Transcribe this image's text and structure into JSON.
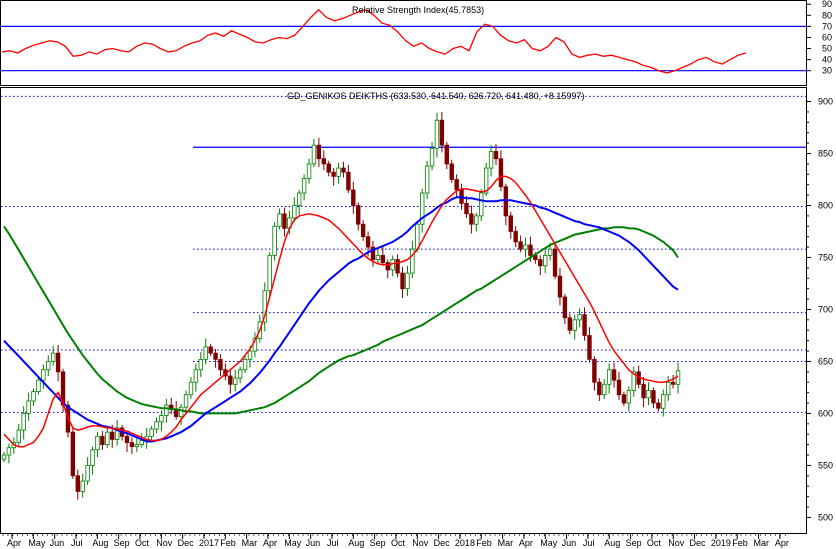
{
  "chart_data": [
    {
      "type": "line",
      "title": "Relative Strength Index(45.7853)",
      "y_ticks": [
        90,
        80,
        70,
        60,
        50,
        40,
        30
      ],
      "ylim": [
        18,
        92
      ],
      "reference_lines": [
        70,
        30
      ],
      "series": [
        {
          "color": "#ff0000",
          "values": [
            47,
            48,
            46,
            50,
            53,
            55,
            57,
            56,
            52,
            43,
            44,
            47,
            45,
            49,
            50,
            48,
            47,
            52,
            55,
            54,
            50,
            47,
            48,
            52,
            55,
            57,
            62,
            64,
            61,
            66,
            63,
            60,
            56,
            55,
            58,
            60,
            59,
            62,
            70,
            78,
            85,
            78,
            75,
            77,
            80,
            83,
            85,
            80,
            73,
            71,
            65,
            57,
            52,
            55,
            50,
            47,
            45,
            50,
            52,
            48,
            65,
            72,
            70,
            62,
            57,
            55,
            58,
            50,
            48,
            52,
            60,
            56,
            45,
            42,
            44,
            45,
            43,
            44,
            42,
            40,
            38,
            35,
            33,
            30,
            28,
            30,
            33,
            36,
            40,
            42,
            38,
            36,
            40,
            44,
            46
          ]
        }
      ]
    },
    {
      "type": "candlestick",
      "title": "GD_GENIKOS DEIKTHS (633.530, 641.540, 626.720, 641.480, +8.15997)",
      "y_ticks": [
        900,
        850,
        800,
        750,
        700,
        650,
        600,
        550,
        500
      ],
      "ylim": [
        485,
        913
      ],
      "x_ticks": [
        "Apr",
        "May",
        "Jun",
        "Jul",
        "Aug",
        "Sep",
        "Oct",
        "Nov",
        "Dec",
        "2017",
        "Feb",
        "Mar",
        "Apr",
        "May",
        "Jun",
        "Jul",
        "Aug",
        "Sep",
        "Oct",
        "Nov",
        "Dec",
        "2018",
        "Feb",
        "Mar",
        "Apr",
        "May",
        "Jun",
        "Jul",
        "Aug",
        "Sep",
        "Oct",
        "Nov",
        "Dec",
        "2019",
        "Feb",
        "Mar",
        "Apr"
      ],
      "x_tick_months": [
        0,
        1,
        2,
        3,
        4,
        5,
        6,
        7,
        8,
        9,
        10,
        11,
        12,
        13,
        14,
        15,
        16,
        17,
        18,
        19,
        20,
        21,
        22,
        23,
        24,
        25,
        26,
        27,
        28,
        29,
        30,
        31,
        32,
        33,
        34,
        35,
        36
      ],
      "first_month_x": 12,
      "month_spacing": 21.33,
      "bar_spacing": 4.92,
      "solid_lines": [
        856
      ],
      "dotted_lines": [
        905,
        799,
        758,
        697,
        661,
        650,
        601
      ],
      "close": [
        560,
        567,
        572,
        584,
        600,
        612,
        621,
        632,
        642,
        650,
        658,
        640,
        608,
        582,
        540,
        525,
        535,
        550,
        565,
        578,
        570,
        582,
        575,
        586,
        578,
        572,
        568,
        570,
        574,
        578,
        585,
        592,
        598,
        608,
        604,
        597,
        606,
        618,
        630,
        642,
        652,
        664,
        658,
        652,
        642,
        636,
        628,
        634,
        642,
        652,
        660,
        672,
        688,
        718,
        752,
        780,
        792,
        778,
        788,
        800,
        812,
        826,
        840,
        858,
        845,
        840,
        832,
        828,
        836,
        832,
        815,
        800,
        782,
        770,
        760,
        748,
        752,
        745,
        738,
        748,
        735,
        720,
        735,
        758,
        782,
        812,
        838,
        855,
        882,
        858,
        840,
        825,
        815,
        802,
        792,
        782,
        790,
        812,
        836,
        852,
        845,
        818,
        790,
        775,
        765,
        758,
        762,
        752,
        748,
        742,
        752,
        758,
        732,
        712,
        692,
        680,
        690,
        695,
        675,
        652,
        630,
        618,
        628,
        642,
        632,
        618,
        610,
        622,
        640,
        628,
        615,
        622,
        610,
        605,
        618,
        630,
        628,
        641
      ],
      "ma_red": [
        580,
        575,
        570,
        568,
        568,
        570,
        572,
        578,
        586,
        600,
        614,
        620,
        610,
        596,
        586,
        584,
        585,
        587,
        588,
        588,
        587,
        586,
        586,
        585,
        584,
        583,
        581,
        579,
        577,
        575,
        574,
        574,
        575,
        578,
        582,
        587,
        594,
        600,
        606,
        612,
        618,
        622,
        626,
        630,
        634,
        638,
        642,
        646,
        650,
        656,
        662,
        670,
        680,
        694,
        712,
        730,
        748,
        765,
        778,
        786,
        790,
        791,
        792,
        791,
        790,
        788,
        786,
        782,
        778,
        773,
        768,
        763,
        758,
        753,
        749,
        746,
        744,
        743,
        743,
        744,
        745,
        746,
        748,
        752,
        758,
        766,
        775,
        784,
        792,
        800,
        806,
        810,
        814,
        816,
        816,
        815,
        814,
        813,
        814,
        818,
        824,
        828,
        828,
        826,
        822,
        816,
        810,
        803,
        795,
        787,
        779,
        771,
        763,
        755,
        747,
        739,
        731,
        723,
        715,
        707,
        698,
        688,
        678,
        668,
        660,
        654,
        648,
        642,
        638,
        635,
        633,
        632,
        631,
        630,
        630,
        631,
        633,
        636
      ],
      "ma_blue": [
        670,
        665,
        660,
        655,
        650,
        645,
        640,
        635,
        630,
        625,
        620,
        615,
        610,
        606,
        603,
        600,
        597,
        594,
        592,
        590,
        588,
        587,
        586,
        584,
        582,
        581,
        579,
        577,
        575,
        573,
        573,
        574,
        575,
        576,
        578,
        580,
        582,
        585,
        588,
        592,
        596,
        600,
        603,
        606,
        609,
        612,
        615,
        618,
        621,
        625,
        629,
        634,
        639,
        645,
        651,
        658,
        664,
        671,
        678,
        685,
        692,
        699,
        706,
        712,
        718,
        723,
        728,
        732,
        736,
        740,
        744,
        747,
        749,
        752,
        755,
        757,
        759,
        761,
        763,
        765,
        768,
        771,
        775,
        780,
        784,
        788,
        791,
        794,
        798,
        801,
        803,
        806,
        808,
        808,
        807,
        807,
        806,
        805,
        804,
        804,
        804,
        805,
        805,
        805,
        804,
        803,
        802,
        801,
        800,
        798,
        797,
        795,
        793,
        791,
        789,
        787,
        785,
        784,
        782,
        781,
        780,
        779,
        777,
        775,
        773,
        771,
        768,
        765,
        761,
        757,
        752,
        747,
        742,
        737,
        732,
        727,
        722,
        719
      ],
      "ma_green": [
        780,
        773,
        765,
        757,
        749,
        741,
        733,
        725,
        717,
        709,
        701,
        693,
        685,
        677,
        670,
        663,
        656,
        650,
        644,
        638,
        633,
        629,
        625,
        621,
        618,
        615,
        613,
        611,
        609,
        608,
        607,
        606,
        605,
        605,
        604,
        604,
        603,
        602,
        602,
        601,
        600,
        600,
        600,
        600,
        600,
        600,
        600,
        600,
        601,
        602,
        603,
        604,
        605,
        606,
        608,
        610,
        613,
        616,
        619,
        622,
        625,
        628,
        631,
        635,
        639,
        642,
        645,
        648,
        651,
        653,
        655,
        656,
        658,
        660,
        662,
        664,
        666,
        669,
        671,
        673,
        675,
        677,
        679,
        681,
        683,
        685,
        688,
        691,
        694,
        697,
        700,
        703,
        706,
        709,
        712,
        715,
        718,
        720,
        723,
        726,
        729,
        732,
        735,
        738,
        741,
        744,
        747,
        750,
        753,
        756,
        759,
        762,
        764,
        766,
        768,
        770,
        772,
        773,
        774,
        775,
        776,
        777,
        778,
        778,
        779,
        779,
        779,
        778,
        778,
        777,
        775,
        773,
        771,
        768,
        765,
        761,
        757,
        750
      ]
    }
  ]
}
